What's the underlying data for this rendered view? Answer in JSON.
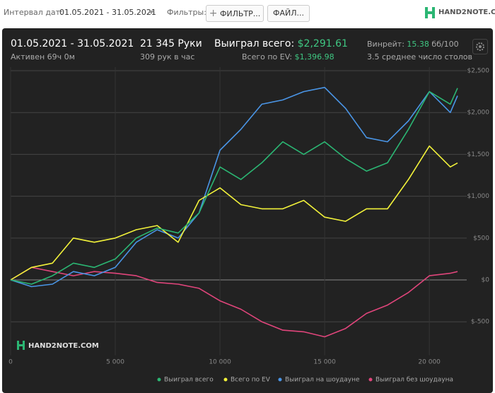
{
  "toolbar": {
    "interval_label": "Интервал дат:",
    "interval_value": "01.05.2021 - 31.05.2021",
    "filters_label": "Фильтры:",
    "filter_button": "ФИЛЬТР...",
    "file_button": "ФАЙЛ..."
  },
  "logo": "HAND2NOTE.COM",
  "summary": {
    "period": "01.05.2021 - 31.05.2021",
    "active": "Активен 69ч 0м",
    "hands": "21 345 Руки",
    "hands_per_hour": "309 рук в час",
    "won_label": "Выиграл всего:",
    "won_value": "$2,291.61",
    "ev_label": "Всего по EV:",
    "ev_value": "$1,396.98",
    "winrate_label": "Винрейт:",
    "winrate_value": "15.38",
    "winrate_unit": "бб/100",
    "tables": "3.5 среднее число столов"
  },
  "chart_data": {
    "type": "line",
    "x": [
      0,
      1000,
      2000,
      3000,
      4000,
      5000,
      6000,
      7000,
      8000,
      9000,
      10000,
      11000,
      12000,
      13000,
      14000,
      15000,
      16000,
      17000,
      18000,
      19000,
      20000,
      21000,
      21345
    ],
    "series": [
      {
        "name": "Выиграл всего",
        "color": "#2bb673",
        "values": [
          0,
          -50,
          50,
          200,
          150,
          250,
          500,
          620,
          560,
          800,
          1350,
          1200,
          1400,
          1650,
          1500,
          1650,
          1450,
          1300,
          1400,
          1800,
          2250,
          2100,
          2291.61
        ]
      },
      {
        "name": "Всего по EV",
        "color": "#f2f23a",
        "values": [
          0,
          150,
          200,
          500,
          450,
          500,
          600,
          650,
          450,
          950,
          1100,
          900,
          850,
          850,
          950,
          750,
          700,
          850,
          850,
          1200,
          1600,
          1350,
          1396.98
        ]
      },
      {
        "name": "Выиграл на шоудауне",
        "color": "#4a95e6",
        "values": [
          0,
          -80,
          -50,
          100,
          50,
          150,
          450,
          600,
          500,
          800,
          1550,
          1800,
          2100,
          2150,
          2250,
          2300,
          2050,
          1700,
          1650,
          1900,
          2250,
          2000,
          2200
        ]
      },
      {
        "name": "Выиграл без шоудауна",
        "color": "#e0457b",
        "values": [
          0,
          150,
          100,
          50,
          100,
          80,
          50,
          -30,
          -50,
          -100,
          -250,
          -350,
          -500,
          -600,
          -620,
          -680,
          -580,
          -400,
          -300,
          -150,
          50,
          80,
          100
        ]
      }
    ],
    "xlim": [
      0,
      21345
    ],
    "ylim": [
      -900,
      2500
    ],
    "xticks": [
      0,
      {
        "value": 5000,
        "label": "5 000"
      },
      {
        "value": 10000,
        "label": "10 000"
      },
      {
        "value": 15000,
        "label": "15 000"
      },
      {
        "value": 20000,
        "label": "20 000"
      }
    ],
    "yticks": [
      {
        "value": 2500,
        "label": "$2,500"
      },
      {
        "value": 2000,
        "label": "$2,000"
      },
      {
        "value": 1500,
        "label": "$1,500"
      },
      {
        "value": 1000,
        "label": "$1,000"
      },
      {
        "value": 500,
        "label": "$500"
      },
      {
        "value": 0,
        "label": "$0"
      },
      {
        "value": -500,
        "label": "$-500"
      }
    ],
    "grid": true
  }
}
